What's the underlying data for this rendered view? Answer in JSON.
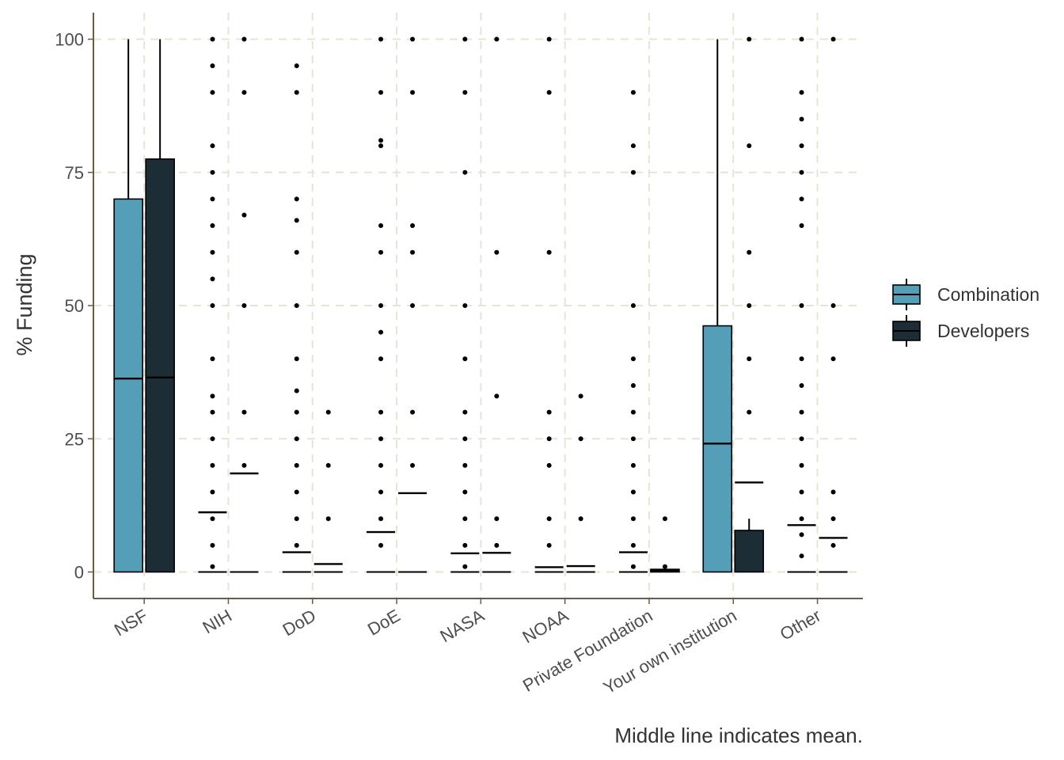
{
  "chart_data": {
    "type": "boxplot",
    "ylabel": "% Funding",
    "caption": "Middle line indicates mean.",
    "ylim": [
      -5,
      105
    ],
    "y_ticks": [
      0,
      25,
      50,
      75,
      100
    ],
    "grid": true,
    "legend_position": "right",
    "categories": [
      "NSF",
      "NIH",
      "DoD",
      "DoE",
      "NASA",
      "NOAA",
      "Private Foundation",
      "Your own institution",
      "Other"
    ],
    "series": [
      {
        "name": "Combination",
        "color": "#559EB8",
        "boxes": [
          {
            "low": 0,
            "q1": 0,
            "mean": 36.3,
            "q3": 70,
            "high": 100,
            "outliers": []
          },
          {
            "low": 0,
            "q1": 0,
            "mean": 11.2,
            "q3": 0,
            "high": 0,
            "outliers": [
              1,
              5,
              10,
              15,
              20,
              25,
              30,
              33,
              40,
              50,
              55,
              60,
              65,
              70,
              75,
              80,
              90,
              95,
              100
            ]
          },
          {
            "low": 0,
            "q1": 0,
            "mean": 3.7,
            "q3": 0,
            "high": 0,
            "outliers": [
              5,
              10,
              15,
              20,
              25,
              30,
              34,
              40,
              50,
              60,
              66,
              70,
              90,
              95
            ]
          },
          {
            "low": 0,
            "q1": 0,
            "mean": 7.5,
            "q3": 0,
            "high": 0,
            "outliers": [
              5,
              10,
              15,
              20,
              25,
              30,
              40,
              45,
              50,
              60,
              65,
              80,
              81,
              90,
              100
            ]
          },
          {
            "low": 0,
            "q1": 0,
            "mean": 3.5,
            "q3": 0,
            "high": 0,
            "outliers": [
              1,
              5,
              10,
              15,
              20,
              25,
              30,
              40,
              50,
              75,
              90,
              100
            ]
          },
          {
            "low": 0,
            "q1": 0,
            "mean": 0.9,
            "q3": 0,
            "high": 0,
            "outliers": [
              5,
              10,
              20,
              25,
              30,
              60,
              90,
              100
            ]
          },
          {
            "low": 0,
            "q1": 0,
            "mean": 3.7,
            "q3": 0,
            "high": 0,
            "outliers": [
              1,
              5,
              10,
              15,
              20,
              25,
              30,
              35,
              40,
              50,
              75,
              80,
              90
            ]
          },
          {
            "low": 0,
            "q1": 0,
            "mean": 24.1,
            "q3": 46.2,
            "high": 100,
            "outliers": []
          },
          {
            "low": 0,
            "q1": 0,
            "mean": 8.8,
            "q3": 0,
            "high": 0,
            "outliers": [
              3,
              7,
              10,
              15,
              20,
              25,
              30,
              35,
              40,
              50,
              65,
              70,
              75,
              80,
              85,
              90,
              100
            ]
          }
        ]
      },
      {
        "name": "Developers",
        "color": "#1C2D35",
        "boxes": [
          {
            "low": 0,
            "q1": 0,
            "mean": 36.5,
            "q3": 77.5,
            "high": 100,
            "outliers": []
          },
          {
            "low": 0,
            "q1": 0,
            "mean": 18.5,
            "q3": 0,
            "high": 0,
            "outliers": [
              20,
              30,
              50,
              67,
              90,
              100
            ]
          },
          {
            "low": 0,
            "q1": 0,
            "mean": 1.5,
            "q3": 0,
            "high": 0,
            "outliers": [
              10,
              20,
              30
            ]
          },
          {
            "low": 0,
            "q1": 0,
            "mean": 14.8,
            "q3": 0,
            "high": 0,
            "outliers": [
              20,
              30,
              50,
              60,
              65,
              90,
              100
            ]
          },
          {
            "low": 0,
            "q1": 0,
            "mean": 3.6,
            "q3": 0,
            "high": 0,
            "outliers": [
              5,
              10,
              33,
              60,
              100
            ]
          },
          {
            "low": 0,
            "q1": 0,
            "mean": 1.1,
            "q3": 0,
            "high": 0,
            "outliers": [
              10,
              25,
              33
            ]
          },
          {
            "low": 0,
            "q1": 0,
            "mean": 0.3,
            "q3": 0.5,
            "high": 0.5,
            "outliers": [
              1,
              10
            ]
          },
          {
            "low": 0,
            "q1": 0,
            "mean": 16.8,
            "q3": 7.8,
            "high": 10,
            "outliers": [
              30,
              40,
              50,
              60,
              80,
              100
            ]
          },
          {
            "low": 0,
            "q1": 0,
            "mean": 6.4,
            "q3": 0,
            "high": 0,
            "outliers": [
              5,
              10,
              15,
              40,
              50,
              100
            ]
          }
        ]
      }
    ]
  }
}
